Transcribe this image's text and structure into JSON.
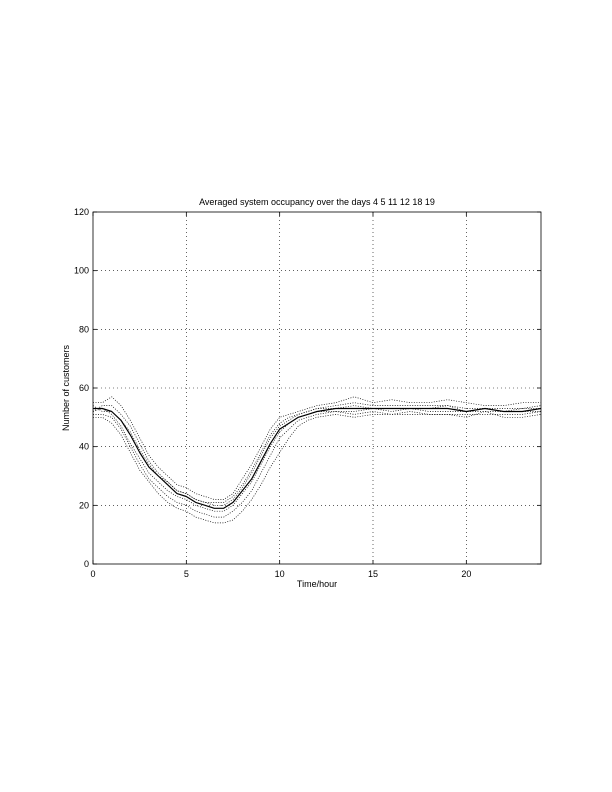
{
  "chart_data": {
    "type": "line",
    "title": "Averaged system occupancy over the days 4 5 11 12 18 19",
    "xlabel": "Time/hour",
    "ylabel": "Number of customers",
    "xlim": [
      0,
      24
    ],
    "ylim": [
      0,
      120
    ],
    "xticks": [
      0,
      5,
      10,
      15,
      20
    ],
    "yticks": [
      0,
      20,
      40,
      60,
      80,
      100,
      120
    ],
    "grid": true,
    "legend": "none",
    "colors": {
      "line": "#000000",
      "grid": "#000000",
      "background": "#ffffff"
    },
    "x": [
      0,
      0.5,
      1,
      1.5,
      2,
      2.5,
      3,
      3.5,
      4,
      4.5,
      5,
      5.5,
      6,
      6.5,
      7,
      7.5,
      8,
      8.5,
      9,
      9.5,
      10,
      10.5,
      11,
      11.5,
      12,
      13,
      14,
      15,
      16,
      17,
      18,
      19,
      20,
      21,
      22,
      23,
      24
    ],
    "series": [
      {
        "style": "solid",
        "values": [
          53,
          53,
          52,
          49,
          44,
          38,
          33,
          30,
          27,
          24,
          23,
          21,
          20,
          19,
          19,
          21,
          25,
          29,
          35,
          41,
          46,
          48,
          50,
          51,
          52,
          53,
          53,
          53,
          53,
          53,
          53,
          53,
          52,
          53,
          52,
          52,
          53
        ]
      },
      {
        "style": "dotted",
        "values": [
          55,
          55,
          57,
          54,
          49,
          43,
          37,
          33,
          30,
          27,
          26,
          24,
          23,
          22,
          22,
          24,
          29,
          34,
          40,
          46,
          50,
          51,
          52,
          53,
          54,
          55,
          57,
          55,
          56,
          55,
          55,
          56,
          55,
          54,
          54,
          55,
          55
        ]
      },
      {
        "style": "dotted",
        "values": [
          51,
          51,
          50,
          46,
          40,
          34,
          29,
          26,
          23,
          21,
          20,
          18,
          17,
          16,
          16,
          18,
          21,
          25,
          31,
          37,
          43,
          46,
          49,
          50,
          51,
          52,
          51,
          52,
          51,
          52,
          51,
          51,
          50,
          52,
          50,
          50,
          51
        ]
      },
      {
        "style": "dotted",
        "values": [
          52,
          54,
          54,
          51,
          47,
          41,
          35,
          31,
          28,
          25,
          24,
          22,
          21,
          21,
          21,
          23,
          27,
          32,
          38,
          44,
          48,
          50,
          51,
          52,
          53,
          54,
          55,
          54,
          54,
          54,
          54,
          54,
          53,
          53,
          53,
          53,
          54
        ]
      },
      {
        "style": "dotted",
        "values": [
          50,
          50,
          48,
          44,
          38,
          32,
          28,
          24,
          21,
          19,
          18,
          16,
          15,
          14,
          14,
          15,
          18,
          22,
          27,
          33,
          38,
          43,
          47,
          49,
          50,
          51,
          50,
          51,
          51,
          51,
          51,
          51,
          51,
          51,
          51,
          51,
          52
        ]
      },
      {
        "style": "dotted",
        "values": [
          54,
          52,
          52,
          49,
          45,
          39,
          34,
          30,
          28,
          25,
          24,
          22,
          21,
          20,
          20,
          22,
          26,
          31,
          37,
          43,
          47,
          49,
          51,
          52,
          53,
          53,
          54,
          53,
          53,
          53,
          53,
          54,
          52,
          53,
          52,
          53,
          53
        ]
      },
      {
        "style": "dotted",
        "values": [
          52,
          53,
          51,
          47,
          41,
          36,
          31,
          28,
          25,
          23,
          22,
          20,
          19,
          18,
          18,
          20,
          24,
          28,
          34,
          40,
          45,
          48,
          50,
          51,
          52,
          52,
          52,
          53,
          52,
          53,
          52,
          52,
          52,
          52,
          52,
          52,
          52
        ]
      }
    ]
  }
}
